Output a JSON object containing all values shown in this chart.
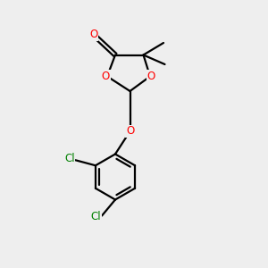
{
  "bg_color": "#eeeeee",
  "bond_color": "#000000",
  "oxygen_color": "#ff0000",
  "chlorine_color": "#008000",
  "line_width": 1.6,
  "figsize": [
    3.0,
    3.0
  ],
  "dpi": 100,
  "xlim": [
    0,
    10
  ],
  "ylim": [
    0,
    10
  ]
}
